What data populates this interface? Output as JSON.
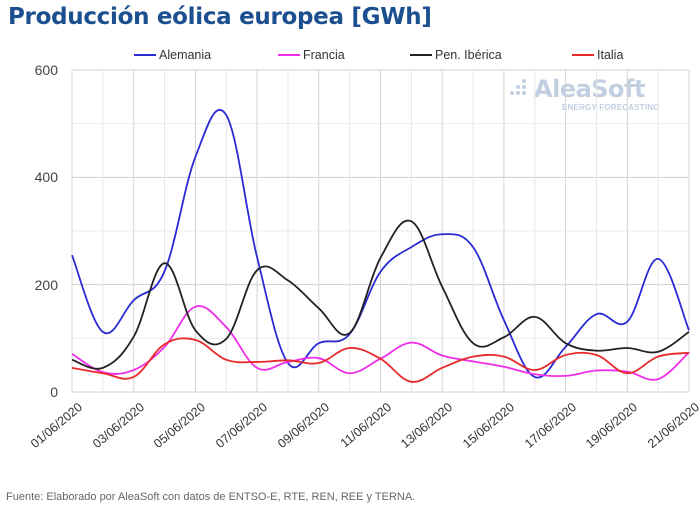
{
  "chart_data": {
    "type": "line",
    "title": "Producción eólica europea [GWh]",
    "xlabel": "",
    "ylabel": "",
    "ylim": [
      0,
      600
    ],
    "yticks": [
      "0",
      "200",
      "400",
      "600"
    ],
    "grid": true,
    "legend_position": "top",
    "x": [
      "01/06/2020",
      "02/06/2020",
      "03/06/2020",
      "04/06/2020",
      "05/06/2020",
      "06/06/2020",
      "07/06/2020",
      "08/06/2020",
      "09/06/2020",
      "10/06/2020",
      "11/06/2020",
      "12/06/2020",
      "13/06/2020",
      "14/06/2020",
      "15/06/2020",
      "16/06/2020",
      "17/06/2020",
      "18/06/2020",
      "19/06/2020",
      "20/06/2020",
      "21/06/2020"
    ],
    "xtick_labels": [
      "01/06/2020",
      "03/06/2020",
      "05/06/2020",
      "07/06/2020",
      "09/06/2020",
      "11/06/2020",
      "13/06/2020",
      "15/06/2020",
      "17/06/2020",
      "19/06/2020",
      "21/06/2020"
    ],
    "series": [
      {
        "name": "Alemania",
        "color": "#2b2bd6",
        "values": [
          255,
          112,
          171,
          225,
          438,
          516,
          251,
          54,
          91,
          108,
          224,
          270,
          294,
          270,
          134,
          28,
          84,
          145,
          131,
          248,
          115
        ]
      },
      {
        "name": "Francia",
        "color": "#ee2ee8",
        "values": [
          71,
          37,
          41,
          84,
          159,
          121,
          45,
          56,
          63,
          35,
          62,
          92,
          68,
          57,
          47,
          33,
          30,
          40,
          38,
          24,
          74
        ]
      },
      {
        "name": "Pen. Ibérica",
        "color": "#222222",
        "values": [
          60,
          45,
          103,
          240,
          115,
          99,
          227,
          208,
          156,
          110,
          250,
          318,
          196,
          91,
          102,
          140,
          91,
          77,
          82,
          75,
          112
        ]
      },
      {
        "name": "Italia",
        "color": "#e82a2a",
        "values": [
          45,
          35,
          28,
          89,
          97,
          60,
          56,
          59,
          54,
          82,
          62,
          19,
          45,
          66,
          66,
          41,
          69,
          69,
          35,
          66,
          73
        ]
      }
    ]
  },
  "logo": {
    "main": "AleaSoft",
    "sub": "ENERGY FORECASTING"
  },
  "source_text": "Fuente: Elaborado por AleaSoft con datos de ENTSO-E, RTE, REN, REE y TERNA."
}
